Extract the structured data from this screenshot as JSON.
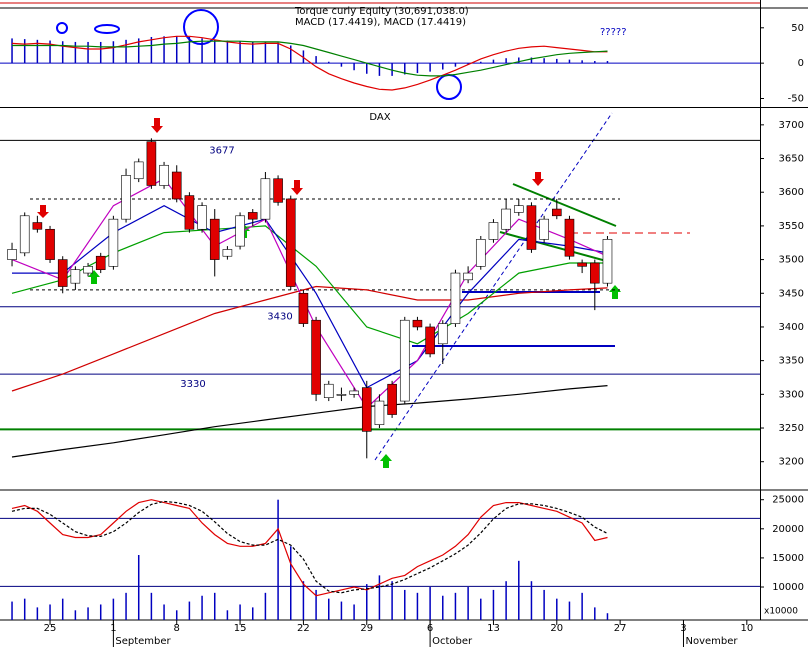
{
  "chart_data": [
    {
      "type": "macd",
      "title": "Torque curly Equity (30,691,038.0)",
      "subtitle": "MACD (17.4419), MACD (17.4419)",
      "annotation": "?????",
      "xlim": [
        -0.95,
        59.04
      ],
      "ylim": [
        -62,
        78
      ],
      "yticks": [
        50,
        0,
        -50
      ],
      "levels": [
        {
          "value": 0,
          "color": "#0000c0"
        }
      ],
      "x": [
        0,
        1,
        2,
        3,
        4,
        5,
        6,
        7,
        8,
        9,
        10,
        11,
        12,
        13,
        14,
        15,
        16,
        17,
        18,
        19,
        20,
        21,
        22,
        23,
        24,
        25,
        26,
        27,
        28,
        29,
        30,
        31,
        32,
        33,
        34,
        35,
        36,
        37,
        38,
        39,
        40,
        41,
        42,
        43,
        44,
        45,
        46,
        47
      ],
      "histogram": {
        "color": "#0000c0",
        "values": [
          35,
          34,
          33,
          32,
          31,
          30,
          30,
          30,
          31,
          33,
          35,
          37,
          38,
          38,
          37,
          35,
          33,
          32,
          31,
          30,
          30,
          29,
          25,
          18,
          10,
          2,
          -5,
          -10,
          -15,
          -18,
          -18,
          -16,
          -14,
          -12,
          -9,
          -5,
          -2,
          2,
          5,
          7,
          8,
          8,
          7,
          6,
          5,
          4,
          3,
          3
        ]
      },
      "series": [
        {
          "color": "#e00000",
          "values": [
            28,
            27,
            28,
            27,
            24,
            22,
            20,
            20,
            22,
            26,
            30,
            33,
            36,
            38,
            38,
            36,
            33,
            30,
            28,
            27,
            28,
            28,
            20,
            8,
            -5,
            -15,
            -22,
            -28,
            -33,
            -37,
            -38,
            -35,
            -30,
            -24,
            -17,
            -10,
            -2,
            6,
            12,
            17,
            21,
            23,
            24,
            22,
            20,
            18,
            16,
            16
          ]
        },
        {
          "color": "#008000",
          "values": [
            25,
            25,
            25,
            25,
            25,
            24,
            24,
            23,
            23,
            23,
            24,
            25,
            27,
            28,
            30,
            31,
            31,
            31,
            31,
            30,
            30,
            30,
            28,
            25,
            20,
            15,
            10,
            5,
            0,
            -5,
            -10,
            -14,
            -17,
            -18,
            -18,
            -16,
            -13,
            -10,
            -6,
            -2,
            2,
            6,
            9,
            12,
            14,
            15,
            16,
            17
          ]
        }
      ]
    },
    {
      "type": "candlestick",
      "title": "DAX",
      "xlim": [
        -0.95,
        59.04
      ],
      "ylim": [
        3158,
        3725
      ],
      "yticks": [
        3700,
        3650,
        3600,
        3550,
        3500,
        3450,
        3400,
        3350,
        3300,
        3250,
        3200
      ],
      "x": [
        0,
        1,
        2,
        3,
        4,
        5,
        6,
        7,
        8,
        9,
        10,
        11,
        12,
        13,
        14,
        15,
        16,
        17,
        18,
        19,
        20,
        21,
        22,
        23,
        24,
        25,
        26,
        27,
        28,
        29,
        30,
        31,
        32,
        33,
        34,
        35,
        36,
        37,
        38,
        39,
        40,
        41,
        42,
        43,
        44,
        45,
        46,
        47
      ],
      "open": [
        3500,
        3510,
        3555,
        3545,
        3500,
        3465,
        3480,
        3505,
        3490,
        3560,
        3620,
        3675,
        3610,
        3630,
        3595,
        3545,
        3560,
        3505,
        3520,
        3570,
        3560,
        3620,
        3590,
        3450,
        3410,
        3295,
        3300,
        3300,
        3310,
        3255,
        3315,
        3290,
        3410,
        3400,
        3375,
        3405,
        3470,
        3490,
        3530,
        3545,
        3570,
        3580,
        3530,
        3575,
        3560,
        3495,
        3495,
        3465
      ],
      "high": [
        3525,
        3570,
        3565,
        3550,
        3505,
        3490,
        3495,
        3510,
        3565,
        3635,
        3650,
        3680,
        3645,
        3640,
        3600,
        3585,
        3575,
        3520,
        3570,
        3575,
        3630,
        3625,
        3595,
        3455,
        3415,
        3320,
        3310,
        3310,
        3320,
        3300,
        3320,
        3415,
        3415,
        3405,
        3410,
        3485,
        3490,
        3535,
        3560,
        3590,
        3590,
        3585,
        3565,
        3590,
        3565,
        3500,
        3500,
        3535
      ],
      "low": [
        3490,
        3505,
        3540,
        3495,
        3450,
        3455,
        3475,
        3480,
        3485,
        3555,
        3615,
        3605,
        3605,
        3585,
        3540,
        3540,
        3475,
        3500,
        3515,
        3550,
        3555,
        3580,
        3455,
        3400,
        3290,
        3290,
        3290,
        3295,
        3205,
        3250,
        3265,
        3285,
        3395,
        3355,
        3345,
        3400,
        3465,
        3485,
        3525,
        3540,
        3565,
        3510,
        3525,
        3560,
        3500,
        3480,
        3425,
        3460
      ],
      "close": [
        3515,
        3565,
        3545,
        3500,
        3460,
        3485,
        3490,
        3485,
        3560,
        3625,
        3645,
        3610,
        3640,
        3590,
        3545,
        3580,
        3500,
        3515,
        3565,
        3560,
        3620,
        3585,
        3460,
        3405,
        3300,
        3315,
        3300,
        3305,
        3245,
        3290,
        3270,
        3410,
        3400,
        3360,
        3405,
        3480,
        3480,
        3530,
        3555,
        3575,
        3580,
        3515,
        3560,
        3565,
        3505,
        3490,
        3465,
        3530
      ],
      "up_color": "#ffffff",
      "down_color": "#e00000",
      "levels": [
        {
          "value": 3677,
          "color": "#000000"
        },
        {
          "value": 3430,
          "color": "#000080"
        },
        {
          "value": 3330,
          "color": "#000080"
        },
        {
          "value": 3248,
          "color": "#008000",
          "width": 2
        },
        {
          "value": 3590,
          "color": "#000000",
          "dash": true
        },
        {
          "value": 3455,
          "color": "#000000",
          "dash": true
        }
      ],
      "level_labels": [
        3677,
        3430,
        3330
      ],
      "series": [
        {
          "color": "#000000",
          "x": [
            0,
            4,
            8,
            12,
            16,
            20,
            24,
            28,
            32,
            36,
            40,
            44,
            47
          ],
          "values": [
            3207,
            3218,
            3228,
            3240,
            3252,
            3262,
            3272,
            3282,
            3287,
            3293,
            3300,
            3308,
            3313
          ]
        },
        {
          "color": "#d00000",
          "x": [
            0,
            4,
            8,
            12,
            16,
            20,
            24,
            28,
            32,
            36,
            40,
            44,
            47
          ],
          "values": [
            3305,
            3330,
            3360,
            3390,
            3420,
            3440,
            3460,
            3455,
            3440,
            3440,
            3450,
            3455,
            3458
          ]
        },
        {
          "color": "#00a000",
          "x": [
            0,
            4,
            8,
            12,
            16,
            20,
            24,
            28,
            32,
            36,
            40,
            44,
            47
          ],
          "values": [
            3450,
            3470,
            3510,
            3540,
            3545,
            3550,
            3490,
            3400,
            3375,
            3420,
            3480,
            3495,
            3495
          ]
        },
        {
          "color": "#0000c0",
          "x": [
            0,
            4,
            8,
            12,
            16,
            20,
            24,
            28,
            32,
            36,
            40,
            44,
            47
          ],
          "values": [
            3480,
            3480,
            3540,
            3580,
            3540,
            3560,
            3450,
            3310,
            3350,
            3450,
            3530,
            3520,
            3510
          ]
        },
        {
          "color": "#c000c0",
          "x": [
            0,
            4,
            8,
            12,
            16,
            20,
            24,
            28,
            32,
            36,
            40,
            44,
            47
          ],
          "values": [
            3500,
            3470,
            3580,
            3620,
            3520,
            3560,
            3400,
            3280,
            3350,
            3480,
            3560,
            3530,
            3505
          ]
        }
      ]
    },
    {
      "type": "oscillator",
      "axis_unit": "x10000",
      "xlim": [
        -0.95,
        59.04
      ],
      "ylim": [
        4333,
        26667
      ],
      "yticks": [
        25000,
        20000,
        15000,
        10000
      ],
      "xticks": [
        {
          "value": 3,
          "label": "25"
        },
        {
          "value": 8,
          "label": "1"
        },
        {
          "value": 13,
          "label": "8"
        },
        {
          "value": 18,
          "label": "15"
        },
        {
          "value": 23,
          "label": "22"
        },
        {
          "value": 28,
          "label": "29"
        },
        {
          "value": 33,
          "label": "6"
        },
        {
          "value": 38,
          "label": "13"
        },
        {
          "value": 43,
          "label": "20"
        },
        {
          "value": 48,
          "label": "27"
        },
        {
          "value": 53,
          "label": "3"
        },
        {
          "value": 58,
          "label": "10"
        }
      ],
      "month_labels": [
        {
          "value": 8,
          "label": "September"
        },
        {
          "value": 33,
          "label": "October"
        },
        {
          "value": 53,
          "label": "November"
        }
      ],
      "levels": [
        {
          "value": 21800,
          "color": "#000080"
        },
        {
          "value": 10100,
          "color": "#000080"
        }
      ],
      "x": [
        0,
        1,
        2,
        3,
        4,
        5,
        6,
        7,
        8,
        9,
        10,
        11,
        12,
        13,
        14,
        15,
        16,
        17,
        18,
        19,
        20,
        21,
        22,
        23,
        24,
        25,
        26,
        27,
        28,
        29,
        30,
        31,
        32,
        33,
        34,
        35,
        36,
        37,
        38,
        39,
        40,
        41,
        42,
        43,
        44,
        45,
        46,
        47
      ],
      "volume": {
        "color": "#0000c0",
        "values": [
          7500,
          8000,
          6500,
          7000,
          8000,
          6000,
          6500,
          7000,
          8000,
          9000,
          15500,
          9000,
          7000,
          6000,
          7500,
          8500,
          9000,
          6000,
          7000,
          6500,
          9000,
          25000,
          17000,
          11000,
          9500,
          8000,
          7500,
          7000,
          10500,
          12000,
          11000,
          9500,
          9000,
          10000,
          8500,
          9000,
          10000,
          8000,
          9500,
          11000,
          14500,
          11000,
          9500,
          8000,
          7500,
          9000,
          6500,
          5500
        ]
      },
      "series": [
        {
          "color": "#e00000",
          "values": [
            23500,
            24000,
            23000,
            21000,
            19000,
            18500,
            18500,
            19000,
            21000,
            23000,
            24500,
            25000,
            24500,
            24000,
            23500,
            21000,
            19000,
            17500,
            17000,
            17000,
            17500,
            20000,
            14000,
            10500,
            8500,
            9000,
            9500,
            10000,
            9500,
            10500,
            11500,
            12000,
            13500,
            14500,
            15500,
            17000,
            19000,
            22000,
            24000,
            24500,
            24500,
            24000,
            23500,
            23000,
            22000,
            21000,
            18000,
            18500
          ]
        },
        {
          "color": "#000000",
          "dash": true,
          "values": [
            23000,
            23500,
            23500,
            22500,
            21000,
            19500,
            18800,
            18700,
            19500,
            21000,
            22800,
            24200,
            24700,
            24500,
            24000,
            23000,
            21200,
            19200,
            17800,
            17200,
            17200,
            18200,
            17200,
            14800,
            11000,
            9300,
            9000,
            9500,
            9700,
            10000,
            10500,
            11300,
            12300,
            13300,
            14500,
            15700,
            17200,
            19300,
            21700,
            23500,
            24300,
            24300,
            24000,
            23500,
            22800,
            22000,
            20300,
            19200
          ]
        }
      ]
    }
  ]
}
